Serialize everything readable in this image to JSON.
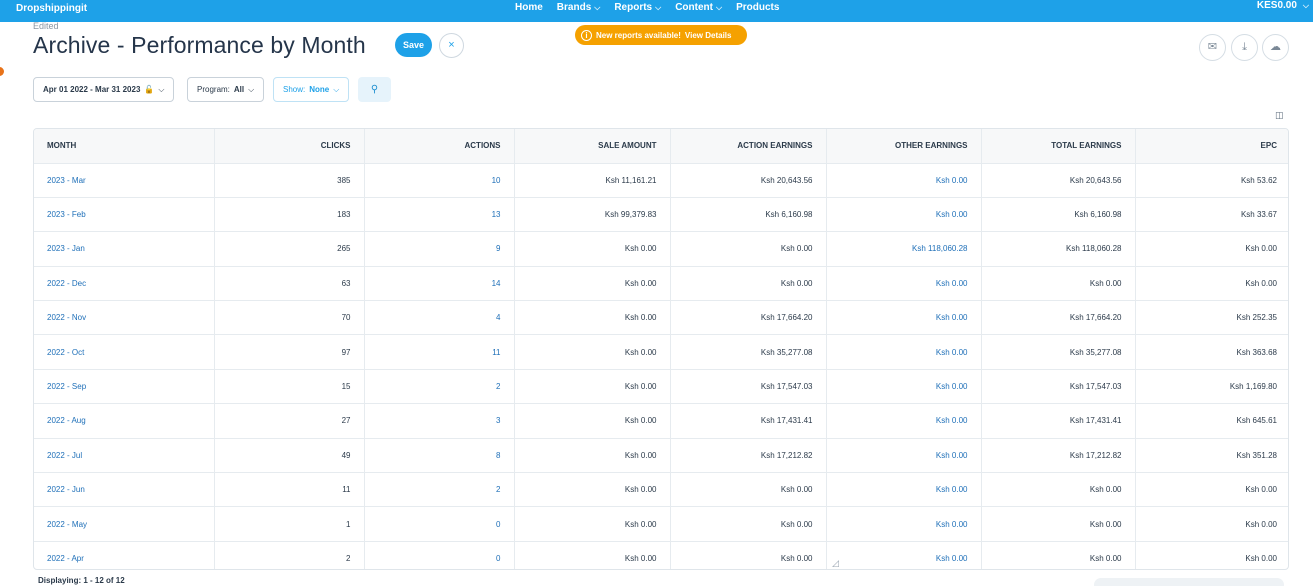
{
  "topbar": {
    "brand": "Dropshippingit",
    "nav": [
      {
        "label": "Home",
        "dropdown": false
      },
      {
        "label": "Brands",
        "dropdown": true
      },
      {
        "label": "Reports",
        "dropdown": true
      },
      {
        "label": "Content",
        "dropdown": true
      },
      {
        "label": "Products",
        "dropdown": false
      }
    ],
    "balance": "KES0.00"
  },
  "header": {
    "edited": "Edited",
    "title": "Archive - Performance by Month",
    "save_label": "Save",
    "close_icon": "×",
    "notice_text": "New reports available!",
    "notice_link": "View Details"
  },
  "icons": {
    "email": "✉",
    "download": "⤓",
    "cloud": "☁"
  },
  "filters": {
    "date_range": "Apr 01 2022 - Mar 31 2023",
    "program_label": "Program:",
    "program_value": "All",
    "show_label": "Show:",
    "show_value": "None"
  },
  "table": {
    "columns": [
      "MONTH",
      "CLICKS",
      "ACTIONS",
      "SALE AMOUNT",
      "ACTION EARNINGS",
      "OTHER EARNINGS",
      "TOTAL EARNINGS",
      "EPC"
    ],
    "rows": [
      [
        "2023 - Mar",
        "385",
        "10",
        "Ksh 11,161.21",
        "Ksh 20,643.56",
        "Ksh 0.00",
        "Ksh 20,643.56",
        "Ksh 53.62"
      ],
      [
        "2023 - Feb",
        "183",
        "13",
        "Ksh 99,379.83",
        "Ksh 6,160.98",
        "Ksh 0.00",
        "Ksh 6,160.98",
        "Ksh 33.67"
      ],
      [
        "2023 - Jan",
        "265",
        "9",
        "Ksh 0.00",
        "Ksh 0.00",
        "Ksh 118,060.28",
        "Ksh 118,060.28",
        "Ksh 0.00"
      ],
      [
        "2022 - Dec",
        "63",
        "14",
        "Ksh 0.00",
        "Ksh 0.00",
        "Ksh 0.00",
        "Ksh 0.00",
        "Ksh 0.00"
      ],
      [
        "2022 - Nov",
        "70",
        "4",
        "Ksh 0.00",
        "Ksh 17,664.20",
        "Ksh 0.00",
        "Ksh 17,664.20",
        "Ksh 252.35"
      ],
      [
        "2022 - Oct",
        "97",
        "11",
        "Ksh 0.00",
        "Ksh 35,277.08",
        "Ksh 0.00",
        "Ksh 35,277.08",
        "Ksh 363.68"
      ],
      [
        "2022 - Sep",
        "15",
        "2",
        "Ksh 0.00",
        "Ksh 17,547.03",
        "Ksh 0.00",
        "Ksh 17,547.03",
        "Ksh 1,169.80"
      ],
      [
        "2022 - Aug",
        "27",
        "3",
        "Ksh 0.00",
        "Ksh 17,431.41",
        "Ksh 0.00",
        "Ksh 17,431.41",
        "Ksh 645.61"
      ],
      [
        "2022 - Jul",
        "49",
        "8",
        "Ksh 0.00",
        "Ksh 17,212.82",
        "Ksh 0.00",
        "Ksh 17,212.82",
        "Ksh 351.28"
      ],
      [
        "2022 - Jun",
        "11",
        "2",
        "Ksh 0.00",
        "Ksh 0.00",
        "Ksh 0.00",
        "Ksh 0.00",
        "Ksh 0.00"
      ],
      [
        "2022 - May",
        "1",
        "0",
        "Ksh 0.00",
        "Ksh 0.00",
        "Ksh 0.00",
        "Ksh 0.00",
        "Ksh 0.00"
      ],
      [
        "2022 - Apr",
        "2",
        "0",
        "Ksh 0.00",
        "Ksh 0.00",
        "Ksh 0.00",
        "Ksh 0.00",
        "Ksh 0.00"
      ]
    ]
  },
  "footer": {
    "displaying": "Displaying: 1 - 12 of 12"
  },
  "colors": {
    "accent": "#1ea1e8",
    "link": "#1e6fb8",
    "notice": "#f5a100"
  }
}
